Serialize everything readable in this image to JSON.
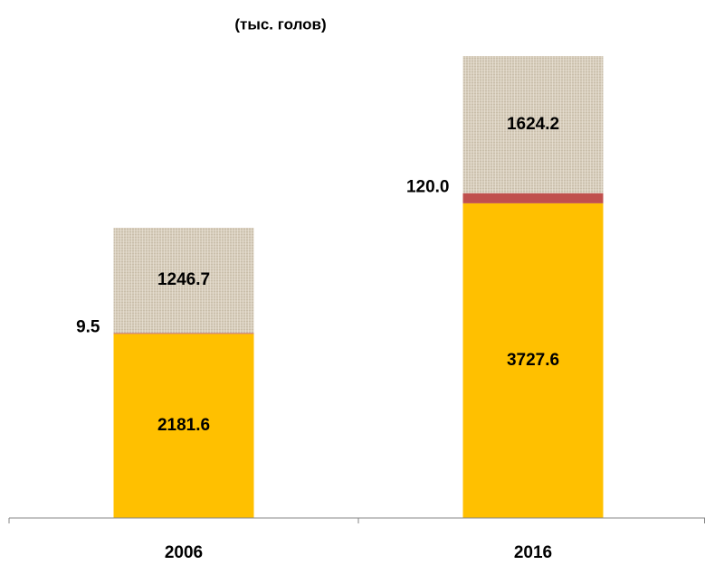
{
  "chart_data": {
    "type": "stacked_bar",
    "title": "(тыс. голов)",
    "categories": [
      "2006",
      "2016"
    ],
    "series": [
      {
        "color": "#ffc000",
        "values": [
          2181.6,
          3727.6
        ]
      },
      {
        "color": "#c0504d",
        "values": [
          9.5,
          120.0
        ],
        "value_labels": [
          "9.5",
          "120.0"
        ]
      },
      {
        "color": "#d6ccbb",
        "values": [
          1246.7,
          1624.2
        ]
      }
    ]
  }
}
